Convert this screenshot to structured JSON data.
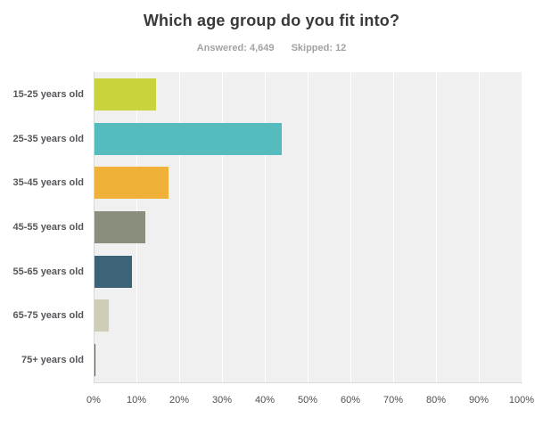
{
  "title": "Which age group do you fit into?",
  "stats": {
    "answered": "Answered: 4,649",
    "skipped": "Skipped: 12"
  },
  "chart_data": {
    "type": "bar",
    "orientation": "horizontal",
    "title": "Which age group do you fit into?",
    "categories": [
      "15-25 years old",
      "25-35 years old",
      "35-45 years old",
      "45-55 years old",
      "55-65 years old",
      "65-75 years old",
      "75+ years old"
    ],
    "values": [
      14.3,
      43.8,
      17.3,
      11.9,
      8.7,
      3.3,
      0.3
    ],
    "unit": "%",
    "bar_colors": [
      "#c9d43c",
      "#54bcbf",
      "#f0b138",
      "#8a8e7d",
      "#3c6377",
      "#cfcdb6",
      "#54564a"
    ],
    "x_ticks": [
      "0%",
      "10%",
      "20%",
      "30%",
      "40%",
      "50%",
      "60%",
      "70%",
      "80%",
      "90%",
      "100%"
    ],
    "xlim": [
      0,
      100
    ],
    "xlabel": "",
    "ylabel": "",
    "grid": "vertical white gridlines every 10%",
    "plot_background": "#f0f0f0",
    "legend": "none"
  }
}
